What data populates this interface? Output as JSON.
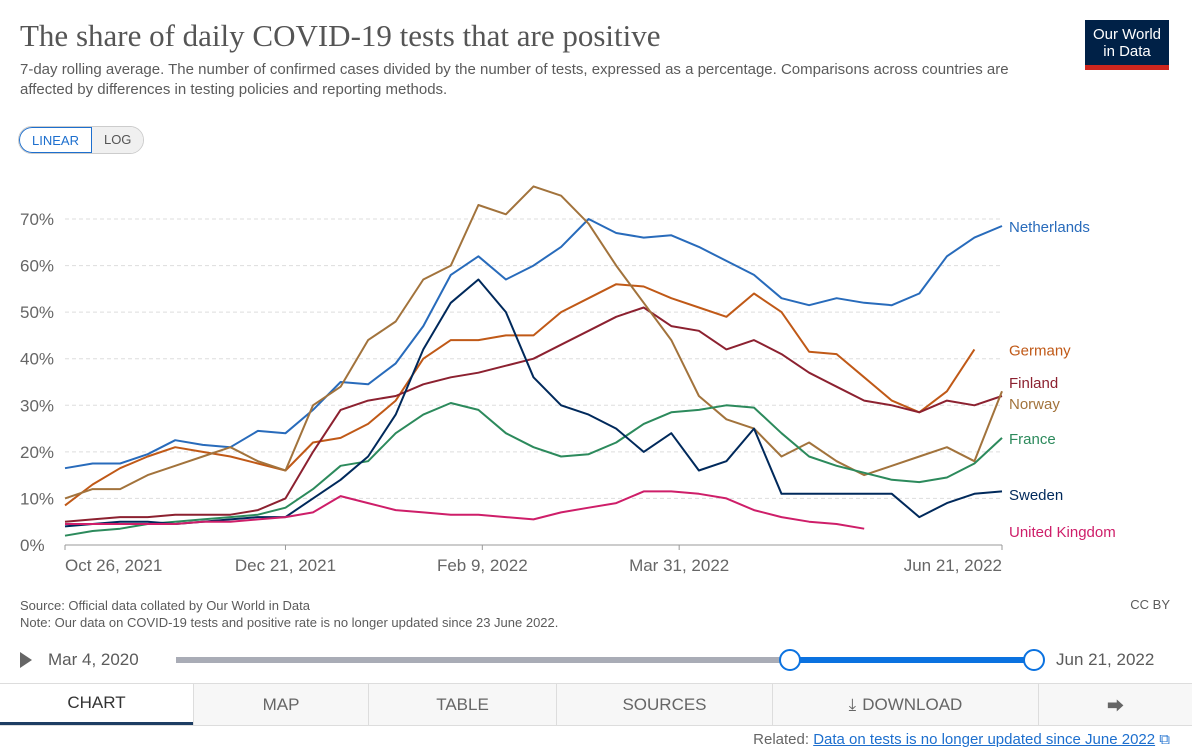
{
  "header": {
    "title": "The share of daily COVID-19 tests that are positive",
    "subtitle": "7-day rolling average. The number of confirmed cases divided by the number of tests, expressed as a percentage. Comparisons across countries are affected by differences in testing policies and reporting methods.",
    "logo_line1": "Our World",
    "logo_line2": "in Data"
  },
  "scale_toggle": {
    "linear": "LINEAR",
    "log": "LOG",
    "selected": "LINEAR"
  },
  "chart_data": {
    "type": "line",
    "title": "The share of daily COVID-19 tests that are positive",
    "x_unit": "days since Oct 26, 2021 (weekly samples)",
    "x": [
      0,
      7,
      14,
      21,
      28,
      35,
      42,
      49,
      56,
      63,
      70,
      77,
      84,
      91,
      98,
      105,
      112,
      119,
      126,
      133,
      140,
      147,
      154,
      161,
      168,
      175,
      182,
      189,
      196,
      203,
      210,
      217,
      224,
      231,
      238
    ],
    "xticks": [
      {
        "day": 0,
        "label": "Oct 26, 2021",
        "align": "start"
      },
      {
        "day": 56,
        "label": "Dec 21, 2021",
        "align": "middle"
      },
      {
        "day": 106,
        "label": "Feb 9, 2022",
        "align": "middle"
      },
      {
        "day": 156,
        "label": "Mar 31, 2022",
        "align": "middle"
      },
      {
        "day": 238,
        "label": "Jun 21, 2022",
        "align": "end"
      }
    ],
    "yticks": [
      {
        "v": 0,
        "label": "0%"
      },
      {
        "v": 10,
        "label": "10%"
      },
      {
        "v": 20,
        "label": "20%"
      },
      {
        "v": 30,
        "label": "30%"
      },
      {
        "v": 40,
        "label": "40%"
      },
      {
        "v": 50,
        "label": "50%"
      },
      {
        "v": 60,
        "label": "60%"
      },
      {
        "v": 70,
        "label": "70%"
      }
    ],
    "xlim": [
      0,
      238
    ],
    "ylim": [
      0,
      70
    ],
    "grid": true,
    "legend": "right-end-labels",
    "series": [
      {
        "name": "Netherlands",
        "color": "#286bbb",
        "label_v": 68.5,
        "values": [
          16.5,
          17.5,
          17.5,
          19.5,
          22.5,
          21.5,
          21,
          24.5,
          24,
          29,
          35,
          34.5,
          39,
          47,
          58,
          62,
          57,
          60,
          64,
          70,
          67,
          66,
          66.5,
          64,
          61,
          58,
          53,
          51.5,
          53,
          52,
          51.5,
          54,
          62,
          66,
          68.5
        ]
      },
      {
        "name": "Germany",
        "color": "#c05917",
        "label_v": 42,
        "values": [
          8.5,
          13,
          16.5,
          19,
          21,
          20,
          19,
          17.5,
          16,
          22,
          23,
          26,
          31,
          40,
          44,
          44,
          45,
          45,
          50,
          53,
          56,
          55.5,
          53,
          51,
          49,
          54,
          50,
          41.5,
          41,
          36,
          31,
          28.5,
          33,
          42,
          null
        ]
      },
      {
        "name": "Finland",
        "color": "#8c2130",
        "label_v": 35,
        "values": [
          5,
          5.5,
          6,
          6,
          6.5,
          6.5,
          6.5,
          7.5,
          10,
          20,
          29,
          31,
          32,
          34.5,
          36,
          37,
          38.5,
          40,
          43,
          46,
          49,
          51,
          47,
          46,
          42,
          44,
          41,
          37,
          34,
          31,
          30,
          28.5,
          31,
          30,
          32
        ]
      },
      {
        "name": "Norway",
        "color": "#a2733c",
        "label_v": 30.5,
        "values": [
          10,
          12,
          12,
          15,
          17,
          19,
          21,
          18,
          16,
          30,
          34,
          44,
          48,
          57,
          60,
          73,
          71,
          77,
          75,
          69,
          60,
          52,
          44,
          32,
          27,
          25,
          19,
          22,
          18,
          15,
          17,
          19,
          21,
          18,
          33
        ]
      },
      {
        "name": "France",
        "color": "#2c8a5c",
        "label_v": 23,
        "values": [
          2,
          3,
          3.5,
          4.5,
          5,
          5.5,
          6,
          6.5,
          8,
          12,
          17,
          18,
          24,
          28,
          30.5,
          29,
          24,
          21,
          19,
          19.5,
          22,
          26,
          28.5,
          29,
          30,
          29.5,
          24,
          19,
          17,
          15.5,
          14,
          13.5,
          14.5,
          17.5,
          23
        ]
      },
      {
        "name": "Sweden",
        "color": "#00295b",
        "label_v": 11,
        "values": [
          4,
          4.5,
          5,
          5,
          4.5,
          5,
          5.5,
          6,
          6,
          10,
          14,
          19,
          28,
          42,
          52,
          57,
          50,
          36,
          30,
          28,
          25,
          20,
          24,
          16,
          18,
          25,
          11,
          11,
          11,
          11,
          11,
          6,
          9,
          11,
          11.5
        ]
      },
      {
        "name": "United Kingdom",
        "color": "#ce1e69",
        "label_v": 3,
        "values": [
          4.5,
          4.5,
          4.5,
          4.5,
          4.5,
          5,
          5,
          5.5,
          6,
          7,
          10.5,
          9,
          7.5,
          7,
          6.5,
          6.5,
          6,
          5.5,
          7,
          8,
          9,
          11.5,
          11.5,
          11,
          10,
          7.5,
          6,
          5,
          4.5,
          3.5,
          null,
          null,
          null,
          null,
          null
        ]
      }
    ]
  },
  "footer": {
    "source": "Source: Official data collated by Our World in Data",
    "note": "Note: Our data on COVID-19 tests and positive rate is no longer updated since 23 June 2022.",
    "license": "CC BY"
  },
  "timeline": {
    "start": "Mar 4, 2020",
    "end": "Jun 21, 2022",
    "selected_fraction": [
      0.716,
      1.0
    ]
  },
  "tabs": [
    "CHART",
    "MAP",
    "TABLE",
    "SOURCES",
    "DOWNLOAD",
    ""
  ],
  "related": {
    "label": "Related:",
    "link": "Data on tests is no longer updated since June 2022"
  }
}
